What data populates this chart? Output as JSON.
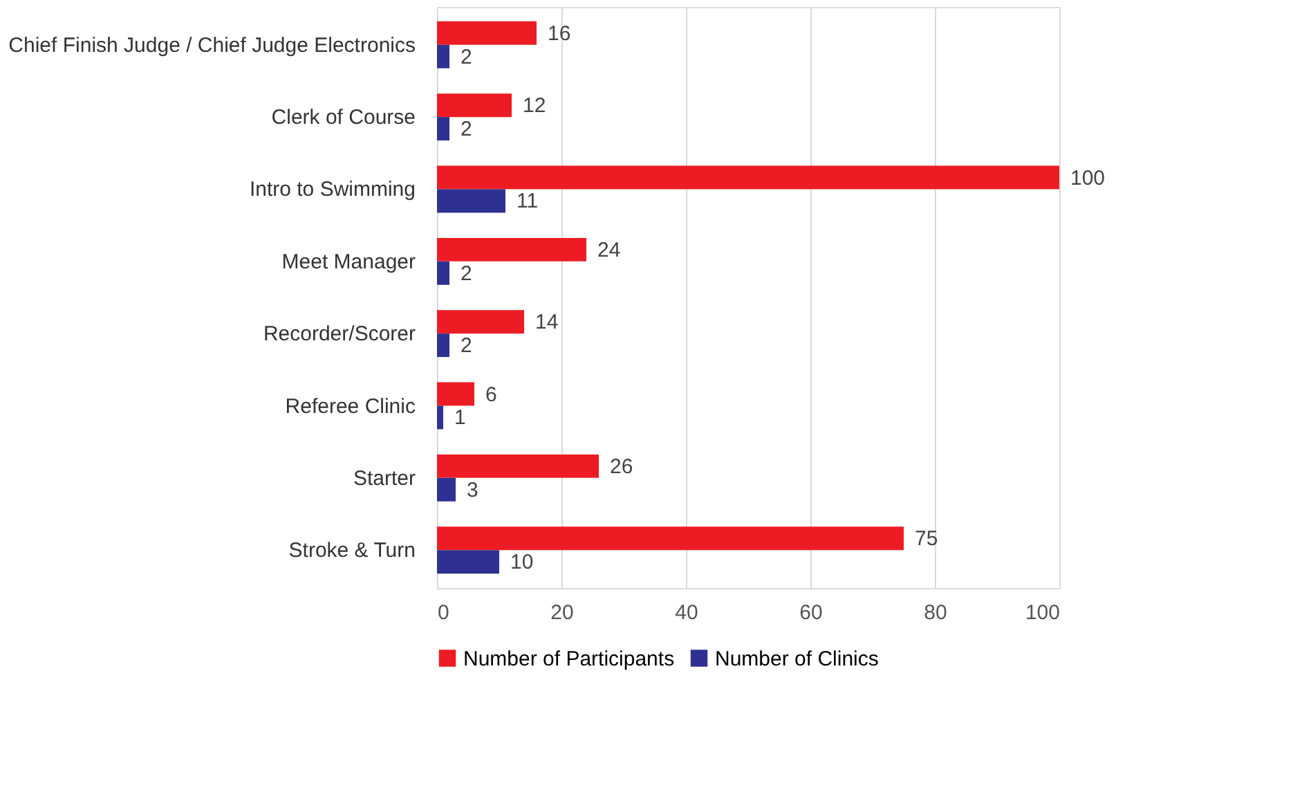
{
  "chart_data": {
    "type": "bar",
    "orientation": "horizontal",
    "categories": [
      "Chief Finish Judge / Chief Judge Electronics",
      "Clerk of Course",
      "Intro to Swimming",
      "Meet Manager",
      "Recorder/Scorer",
      "Referee Clinic",
      "Starter",
      "Stroke & Turn"
    ],
    "series": [
      {
        "name": "Number of Participants",
        "color": "#ed1c24",
        "values": [
          16,
          12,
          100,
          24,
          14,
          6,
          26,
          75
        ]
      },
      {
        "name": "Number of Clinics",
        "color": "#2e3192",
        "values": [
          2,
          2,
          11,
          2,
          2,
          1,
          3,
          10
        ]
      }
    ],
    "xlim": [
      0,
      100
    ],
    "xticks": [
      0,
      20,
      40,
      60,
      80,
      100
    ],
    "grid": "x",
    "legend": "bottom",
    "data_labels": true
  }
}
